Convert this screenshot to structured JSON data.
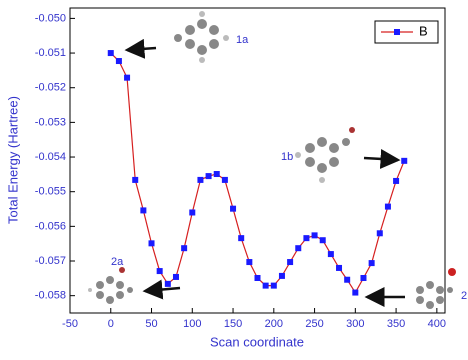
{
  "chart_data": {
    "type": "line",
    "x_label": "Scan coordinate",
    "y_label": "Total Energy (Hartree)",
    "x": [
      0,
      10,
      20,
      30,
      40,
      50,
      60,
      70,
      80,
      90,
      100,
      110,
      120,
      130,
      140,
      150,
      160,
      170,
      180,
      190,
      200,
      210,
      220,
      230,
      240,
      250,
      260,
      270,
      280,
      290,
      300,
      310,
      320,
      330,
      340,
      350,
      360
    ],
    "series": [
      {
        "name": "B",
        "color": "#d62020",
        "marker_color": "#1a1aff",
        "values": [
          -0.051,
          -0.05123,
          -0.05171,
          -0.05466,
          -0.05554,
          -0.05649,
          -0.05729,
          -0.05766,
          -0.05746,
          -0.05663,
          -0.0556,
          -0.05466,
          -0.05455,
          -0.05449,
          -0.05466,
          -0.05549,
          -0.05634,
          -0.05703,
          -0.05749,
          -0.05771,
          -0.05771,
          -0.05743,
          -0.05703,
          -0.05663,
          -0.05634,
          -0.05626,
          -0.0564,
          -0.0568,
          -0.0572,
          -0.05754,
          -0.05791,
          -0.05749,
          -0.05706,
          -0.0562,
          -0.05543,
          -0.05469,
          -0.05411
        ]
      }
    ],
    "xlim": [
      -50,
      410
    ],
    "ylim": [
      -0.0585,
      -0.0497
    ],
    "xticks": [
      -50,
      0,
      50,
      100,
      150,
      200,
      250,
      300,
      350,
      400
    ],
    "yticks": [
      {
        "value": -0.05,
        "label": "-0.050"
      },
      -0.051,
      -0.052,
      -0.053,
      -0.054,
      -0.055,
      -0.056,
      -0.057,
      -0.058
    ],
    "legend": "top-right",
    "annotations": [
      "1a",
      "1b",
      "2a",
      "2"
    ]
  }
}
